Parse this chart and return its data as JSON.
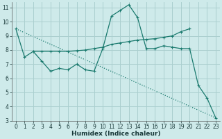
{
  "xlabel": "Humidex (Indice chaleur)",
  "background_color": "#ceeaea",
  "grid_color": "#aacfcf",
  "line_color": "#1a7a6e",
  "xlim": [
    -0.5,
    23.5
  ],
  "ylim": [
    3,
    11.4
  ],
  "yticks": [
    3,
    4,
    5,
    6,
    7,
    8,
    9,
    10,
    11
  ],
  "xticks": [
    0,
    1,
    2,
    3,
    4,
    5,
    6,
    7,
    8,
    9,
    10,
    11,
    12,
    13,
    14,
    15,
    16,
    17,
    18,
    19,
    20,
    21,
    22,
    23
  ],
  "line1_x": [
    0,
    1,
    2,
    3,
    4,
    5,
    6,
    7,
    8,
    9,
    10,
    11,
    12,
    13,
    14,
    15,
    16,
    17,
    18,
    19,
    20,
    21,
    22,
    23
  ],
  "line1_y": [
    9.5,
    7.5,
    7.9,
    7.2,
    6.5,
    6.7,
    6.6,
    7.0,
    6.6,
    6.5,
    8.1,
    10.4,
    10.8,
    11.2,
    10.3,
    8.1,
    8.1,
    8.3,
    8.2,
    8.1,
    8.1,
    5.5,
    4.6,
    3.2
  ],
  "line2_x": [
    2,
    3,
    4,
    5,
    6,
    7,
    8,
    9,
    10,
    11,
    12,
    13,
    14,
    15,
    16,
    17,
    18,
    19,
    20
  ],
  "line2_y": [
    7.9,
    7.9,
    7.9,
    7.9,
    7.9,
    7.95,
    8.0,
    8.1,
    8.2,
    8.4,
    8.5,
    8.6,
    8.7,
    8.75,
    8.8,
    8.9,
    9.0,
    9.3,
    9.5
  ],
  "line3_x": [
    0,
    23
  ],
  "line3_y": [
    9.5,
    3.2
  ]
}
